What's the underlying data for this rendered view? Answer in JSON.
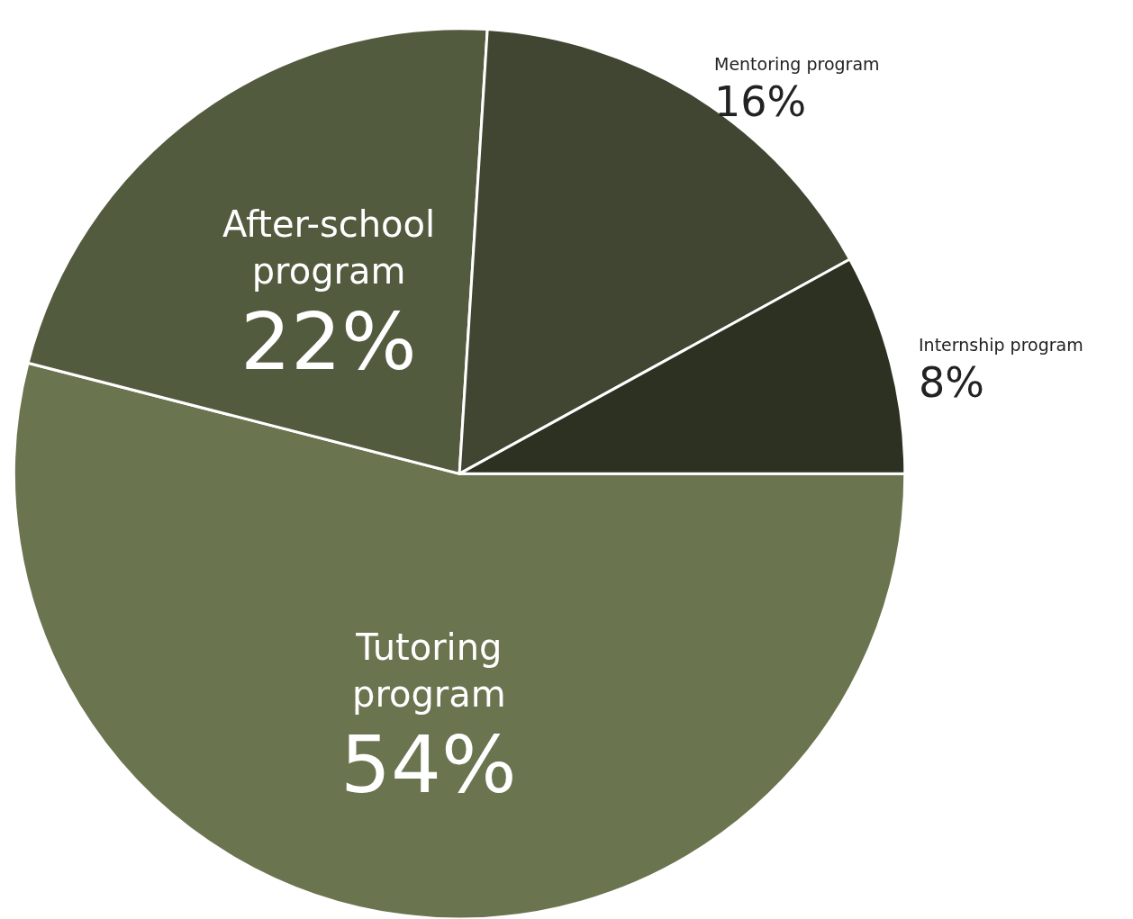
{
  "chart_data": {
    "type": "pie",
    "categories": [
      "Tutoring program",
      "After-school program",
      "Mentoring program",
      "Internship program"
    ],
    "values": [
      54,
      22,
      16,
      8
    ],
    "value_labels": [
      "54%",
      "22%",
      "16%",
      "8%"
    ],
    "colors": [
      "#6a744f",
      "#535b3e",
      "#414632",
      "#2d3122"
    ],
    "legend": false
  }
}
